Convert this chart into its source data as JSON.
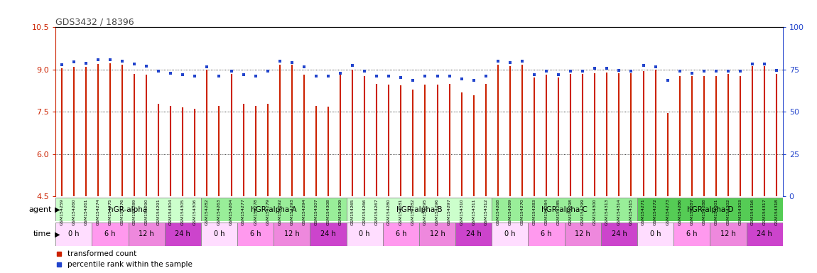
{
  "title": "GDS3432 / 18396",
  "ylim_left": [
    4.5,
    10.5
  ],
  "ylim_right": [
    0,
    100
  ],
  "yticks_left": [
    4.5,
    6.0,
    7.5,
    9.0,
    10.5
  ],
  "yticks_right": [
    0,
    25,
    50,
    75,
    100
  ],
  "bar_color": "#CC2200",
  "dot_color": "#2244CC",
  "tick_bg_color": "#DDDDDD",
  "samples": [
    "GSM154259",
    "GSM154260",
    "GSM154261",
    "GSM154274",
    "GSM154275",
    "GSM154276",
    "GSM154289",
    "GSM154290",
    "GSM154291",
    "GSM154304",
    "GSM154305",
    "GSM154306",
    "GSM154282",
    "GSM154263",
    "GSM154264",
    "GSM154277",
    "GSM154278",
    "GSM154279",
    "GSM154292",
    "GSM154293",
    "GSM154294",
    "GSM154307",
    "GSM154308",
    "GSM154309",
    "GSM154265",
    "GSM154266",
    "GSM154267",
    "GSM154280",
    "GSM154281",
    "GSM154282",
    "GSM154295",
    "GSM154296",
    "GSM154297",
    "GSM154310",
    "GSM154311",
    "GSM154312",
    "GSM154268",
    "GSM154269",
    "GSM154270",
    "GSM154283",
    "GSM154284",
    "GSM154285",
    "GSM154298",
    "GSM154299",
    "GSM154300",
    "GSM154313",
    "GSM154314",
    "GSM154315",
    "GSM154271",
    "GSM154272",
    "GSM154273",
    "GSM154286",
    "GSM154287",
    "GSM154288",
    "GSM154301",
    "GSM154302",
    "GSM154303",
    "GSM154316",
    "GSM154317",
    "GSM154318"
  ],
  "bar_values": [
    9.05,
    9.1,
    9.1,
    9.2,
    9.22,
    9.18,
    8.85,
    8.82,
    7.8,
    7.72,
    7.65,
    7.62,
    9.0,
    7.72,
    8.85,
    7.78,
    7.72,
    7.8,
    9.18,
    9.18,
    8.82,
    7.72,
    7.68,
    8.85,
    9.0,
    8.78,
    8.5,
    8.48,
    8.45,
    8.28,
    8.48,
    8.48,
    8.5,
    8.18,
    8.08,
    8.5,
    9.18,
    9.12,
    9.18,
    8.72,
    8.82,
    8.72,
    8.85,
    8.85,
    8.88,
    8.9,
    8.88,
    8.88,
    8.95,
    9.0,
    7.45,
    8.78,
    8.78,
    8.78,
    8.78,
    8.85,
    8.78,
    9.12,
    9.12,
    8.85
  ],
  "dot_values": [
    9.18,
    9.28,
    9.22,
    9.35,
    9.35,
    9.3,
    9.2,
    9.12,
    8.95,
    8.88,
    8.82,
    8.78,
    9.1,
    8.78,
    8.95,
    8.82,
    8.78,
    8.95,
    9.3,
    9.25,
    9.1,
    8.78,
    8.78,
    8.88,
    9.15,
    8.95,
    8.78,
    8.78,
    8.72,
    8.62,
    8.78,
    8.78,
    8.78,
    8.68,
    8.62,
    8.78,
    9.3,
    9.25,
    9.3,
    8.82,
    8.95,
    8.82,
    8.95,
    8.95,
    9.05,
    9.05,
    8.98,
    8.95,
    9.15,
    9.1,
    8.62,
    8.95,
    8.88,
    8.95,
    8.95,
    8.95,
    8.95,
    9.2,
    9.2,
    8.98
  ],
  "agents": [
    {
      "label": "hGR-alpha",
      "start": 0,
      "end": 12,
      "color": "#CCFFCC"
    },
    {
      "label": "hGR-alpha A",
      "start": 12,
      "end": 24,
      "color": "#99EE99"
    },
    {
      "label": "hGR-alpha B",
      "start": 24,
      "end": 36,
      "color": "#CCFFCC"
    },
    {
      "label": "hGR-alpha C",
      "start": 36,
      "end": 48,
      "color": "#99EE99"
    },
    {
      "label": "hGR-alpha D",
      "start": 48,
      "end": 60,
      "color": "#55CC55"
    }
  ],
  "time_labels": [
    "0 h",
    "6 h",
    "12 h",
    "24 h"
  ],
  "time_colors": [
    "#FFDDFF",
    "#FF99EE",
    "#EE88DD",
    "#CC44CC"
  ],
  "legend_bar_label": "transformed count",
  "legend_dot_label": "percentile rank within the sample"
}
